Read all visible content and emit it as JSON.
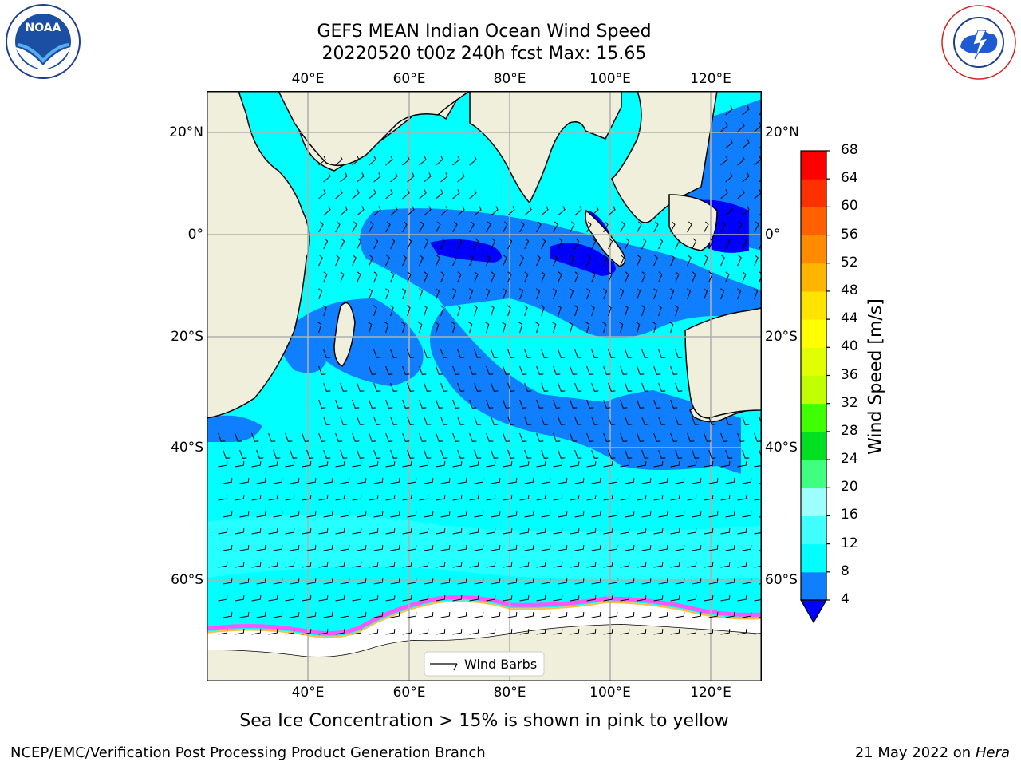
{
  "title": {
    "line1": "GEFS MEAN Indian Ocean Wind Speed",
    "line2": "20220520 t00z 240h fcst   Max: 15.65"
  },
  "logos": {
    "left": "NOAA",
    "left_ring_text": "NATIONAL OCEANIC AND ATMOSPHERIC ADMINISTRATION · U.S. DEPARTMENT OF COMMERCE",
    "right_ring_text": "NATIONAL WEATHER SERVICE"
  },
  "map": {
    "lon_ticks": [
      "40°E",
      "60°E",
      "80°E",
      "100°E",
      "120°E"
    ],
    "lat_ticks": [
      "20°N",
      "0°",
      "20°S",
      "40°S",
      "60°S"
    ],
    "legend_label": "Wind Barbs",
    "colors": {
      "land": "#efefdc",
      "ice": "#ffffff",
      "sea_ice_edge": [
        "#ff55ff",
        "#ffbf40",
        "#ff8c1a"
      ]
    }
  },
  "colorbar": {
    "label": "Wind Speed [m/s]",
    "ticks": [
      "4",
      "8",
      "12",
      "16",
      "20",
      "24",
      "28",
      "32",
      "36",
      "40",
      "44",
      "48",
      "52",
      "56",
      "60",
      "64",
      "68"
    ],
    "colors": [
      "#0f7fff",
      "#00ffff",
      "#40ffff",
      "#9ffffa",
      "#40ff80",
      "#00e020",
      "#40ff00",
      "#bfff00",
      "#e0ff00",
      "#ffff00",
      "#ffe400",
      "#ffb400",
      "#ff8c00",
      "#ff6000",
      "#ff3000",
      "#ff0000"
    ],
    "under_color": "#0000ff"
  },
  "footer": {
    "note": "Sea Ice Concentration > 15% is shown in pink to yellow",
    "left": "NCEP/EMC/Verification Post Processing Product Generation Branch",
    "right_date": "21 May 2022 on",
    "right_host": "Hera"
  }
}
